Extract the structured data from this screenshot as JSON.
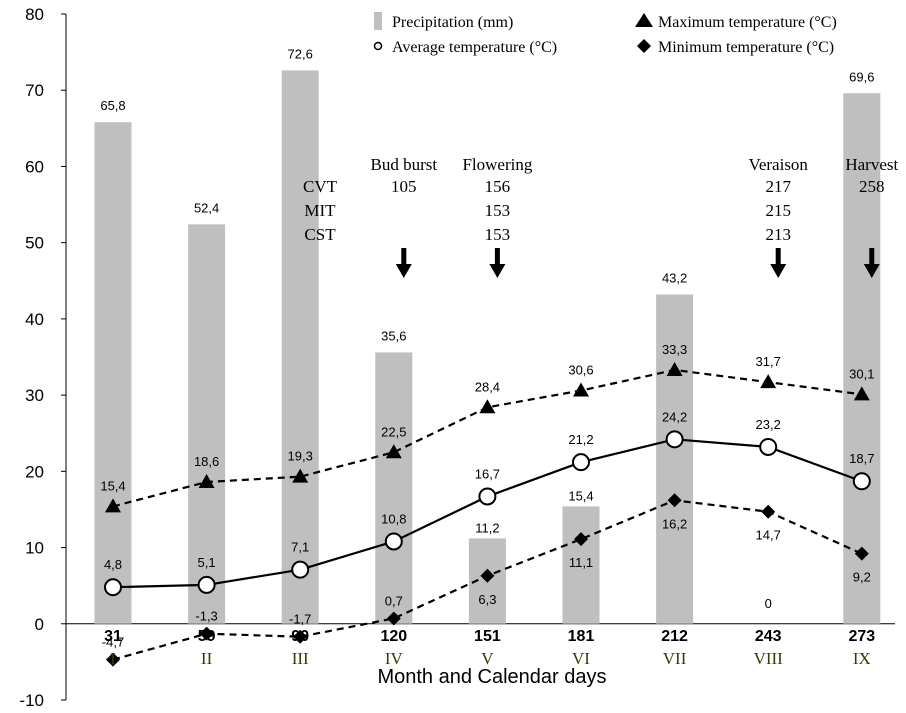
{
  "chart_data": {
    "type": "bar",
    "xlabel": "Month and Calendar days",
    "ylabel": "",
    "ylim": [
      -10,
      80
    ],
    "yticks": [
      -10,
      0,
      10,
      20,
      30,
      40,
      50,
      60,
      70,
      80
    ],
    "grid": false,
    "legend_position": "top-right",
    "categories": [
      "31",
      "59",
      "90",
      "120",
      "151",
      "181",
      "212",
      "243",
      "273"
    ],
    "months": [
      "I",
      "II",
      "III",
      "IV",
      "V",
      "VI",
      "VII",
      "VIII",
      "IX"
    ],
    "series": [
      {
        "name": "Precipitation (mm)",
        "kind": "bar",
        "values": [
          65.8,
          52.4,
          72.6,
          35.6,
          11.2,
          15.4,
          43.2,
          0,
          69.6
        ],
        "labels": [
          "65,8",
          "52,4",
          "72,6",
          "35,6",
          "11,2",
          "15,4",
          "43,2",
          "0",
          "69,6"
        ]
      },
      {
        "name": "Maximum temperature (°C)",
        "kind": "line-dashed",
        "marker": "triangle",
        "values": [
          15.4,
          18.6,
          19.3,
          22.5,
          28.4,
          30.6,
          33.3,
          31.7,
          30.1
        ],
        "labels": [
          "15,4",
          "18,6",
          "19,3",
          "22,5",
          "28,4",
          "30,6",
          "33,3",
          "31,7",
          "30,1"
        ]
      },
      {
        "name": "Average temperature (°C)",
        "kind": "line-solid",
        "marker": "circle",
        "values": [
          4.8,
          5.1,
          7.1,
          10.8,
          16.7,
          21.2,
          24.2,
          23.2,
          18.7
        ],
        "labels": [
          "4,8",
          "5,1",
          "7,1",
          "10,8",
          "16,7",
          "21,2",
          "24,2",
          "23,2",
          "18,7"
        ]
      },
      {
        "name": "Minimum temperature (°C)",
        "kind": "line-dashed",
        "marker": "diamond",
        "values": [
          -4.7,
          -1.3,
          -1.7,
          0.7,
          6.3,
          11.1,
          16.2,
          14.7,
          9.2
        ],
        "labels": [
          "-4,7",
          "-1,3",
          "-1,7",
          "0,7",
          "6,3",
          "11,1",
          "16,2",
          "14,7",
          "9,2"
        ]
      }
    ],
    "annotations": {
      "stages": [
        {
          "label": "Bud burst",
          "x": 120
        },
        {
          "label": "Flowering",
          "x": 151
        },
        {
          "label": "Veraison",
          "x": 243
        },
        {
          "label": "Harvest",
          "x": 273
        }
      ],
      "rows": [
        {
          "cultivar": "CVT",
          "values": [
            "105",
            "156",
            "217",
            "258"
          ]
        },
        {
          "cultivar": "MIT",
          "values": [
            "",
            "153",
            "215",
            ""
          ]
        },
        {
          "cultivar": "CST",
          "values": [
            "",
            "153",
            "213",
            ""
          ]
        }
      ],
      "arrow_x": [
        120,
        151,
        243,
        273
      ]
    }
  }
}
